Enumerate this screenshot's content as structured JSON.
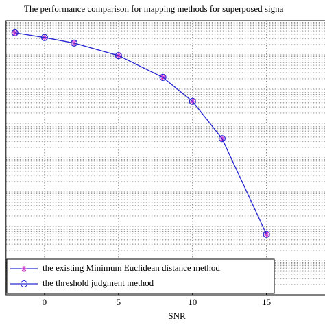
{
  "chart_data": {
    "type": "line",
    "title": "The performance comparison for mapping methods for superposed signa",
    "x_label": "SNR",
    "x": [
      -2,
      0,
      2,
      5,
      8,
      10,
      12,
      15
    ],
    "series": [
      {
        "name": "the existing Minimum Euclidean distance method",
        "color": "#cc33cc",
        "marker": "star",
        "values": [
          0.44,
          0.32,
          0.22,
          0.095,
          0.022,
          0.0044,
          0.00036,
          5.8e-07
        ]
      },
      {
        "name": "the threshold judgment method",
        "color": "#2a2ad4",
        "marker": "circle",
        "values": [
          0.44,
          0.32,
          0.22,
          0.095,
          0.022,
          0.0044,
          0.00036,
          5.8e-07
        ]
      }
    ],
    "xlim": [
      -2.6,
      19
    ],
    "xticks": [
      0,
      5,
      10,
      15
    ],
    "ylim": [
      1e-08,
      1
    ],
    "yticks": [
      1e-08,
      1e-07,
      1e-06,
      1e-05,
      0.0001,
      0.001,
      0.01,
      0.1,
      1
    ],
    "log_y": true,
    "grid": true,
    "legend": "lower left"
  }
}
